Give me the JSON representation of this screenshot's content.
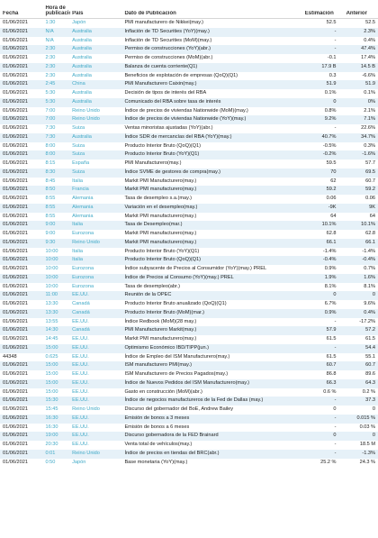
{
  "columns": {
    "date": "Fecha",
    "time": "Hora de publicación",
    "country": "País",
    "event": "Dato de Publicación",
    "estimate": "Estimación",
    "previous": "Anterior"
  },
  "rows": [
    {
      "date": "01/06/2021",
      "time": "1:30",
      "country": "Japón",
      "event": "PMI manufacturero de Nikkei(may.)",
      "estimate": "52.5",
      "previous": "52.5"
    },
    {
      "date": "01/06/2021",
      "time": "N/A",
      "country": "Australia",
      "event": "Inflación de TD Securities (YoY)(may.)",
      "estimate": "-",
      "previous": "2.3%"
    },
    {
      "date": "01/06/2021",
      "time": "N/A",
      "country": "Australia",
      "event": "Inflación de TD Securities (MoM)(may.)",
      "estimate": "-",
      "previous": "0.4%"
    },
    {
      "date": "01/06/2021",
      "time": "2:30",
      "country": "Australia",
      "event": "Permiso de construcciones (YoY)(abr.)",
      "estimate": "-",
      "previous": "47.4%"
    },
    {
      "date": "01/06/2021",
      "time": "2:30",
      "country": "Australia",
      "event": "Permiso de construcciones (MoM)(abr.)",
      "estimate": "-0.1",
      "previous": "17.4%"
    },
    {
      "date": "01/06/2021",
      "time": "2:30",
      "country": "Australia",
      "event": "Balanza de cuenta corriente(Q1)",
      "estimate": "17.9 B",
      "previous": "14.5 B"
    },
    {
      "date": "01/06/2021",
      "time": "2:30",
      "country": "Australia",
      "event": "Beneficios de explotación de empresas (QoQ)(Q1)",
      "estimate": "0.3",
      "previous": "-6.6%"
    },
    {
      "date": "01/06/2021",
      "time": "2:45",
      "country": "China",
      "event": "PMI Manufacturero Caixin(may.)",
      "estimate": "51.9",
      "previous": "51.9"
    },
    {
      "date": "01/06/2021",
      "time": "5:30",
      "country": "Australia",
      "event": "Decisión de tipos de interés del RBA",
      "estimate": "0.1%",
      "previous": "0.1%"
    },
    {
      "date": "01/06/2021",
      "time": "5:30",
      "country": "Australia",
      "event": "Comunicado del RBA sobre tasa de interés",
      "estimate": "0",
      "previous": "0%"
    },
    {
      "date": "01/06/2021",
      "time": "7:00",
      "country": "Reino Unido",
      "event": "Índice de precios de viviendas Nationwide (MoM)(may.)",
      "estimate": "0.8%",
      "previous": "2.1%"
    },
    {
      "date": "01/06/2021",
      "time": "7:00",
      "country": "Reino Unido",
      "event": "Índice de precios de viviendas Nationwide (YoY)(may.)",
      "estimate": "9.2%",
      "previous": "7.1%"
    },
    {
      "date": "01/06/2021",
      "time": "7:30",
      "country": "Suiza",
      "event": "Ventas minoristas ajustadas (YoY)(abr.)",
      "estimate": "-",
      "previous": "22.6%"
    },
    {
      "date": "01/06/2021",
      "time": "7:30",
      "country": "Australia",
      "event": "Índice SDR de mercancías del RBA (YoY)(may.)",
      "estimate": "40.7%",
      "previous": "34.7%"
    },
    {
      "date": "01/06/2021",
      "time": "8:00",
      "country": "Suiza",
      "event": "Producto Interior Bruto (QoQ)(Q1)",
      "estimate": "-0.5%",
      "previous": "0.3%"
    },
    {
      "date": "01/06/2021",
      "time": "8:00",
      "country": "Suiza",
      "event": "Producto Interior Bruto (YoY)(Q1)",
      "estimate": "-0.2%",
      "previous": "-1.6%"
    },
    {
      "date": "01/06/2021",
      "time": "8:15",
      "country": "España",
      "event": "PMI Manufacturero(may.)",
      "estimate": "59.5",
      "previous": "57.7"
    },
    {
      "date": "01/06/2021",
      "time": "8:30",
      "country": "Suiza",
      "event": "Índice SVME de gestores de compra(may.)",
      "estimate": "70",
      "previous": "69.5"
    },
    {
      "date": "01/06/2021",
      "time": "8:45",
      "country": "Italia",
      "event": "Markit PMI Manufacturero(may.)",
      "estimate": "62",
      "previous": "60.7"
    },
    {
      "date": "01/06/2021",
      "time": "8:50",
      "country": "Francia",
      "event": "Markit PMI manufacturero(may.)",
      "estimate": "59.2",
      "previous": "59.2"
    },
    {
      "date": "01/06/2021",
      "time": "8:55",
      "country": "Alemania",
      "event": "Tasa de desempleo s.a.(may.)",
      "estimate": "0.06",
      "previous": "0.06"
    },
    {
      "date": "01/06/2021",
      "time": "8:55",
      "country": "Alemania",
      "event": "Variación en el desempleo(may.)",
      "estimate": "-9K",
      "previous": "9K"
    },
    {
      "date": "01/06/2021",
      "time": "8:55",
      "country": "Alemania",
      "event": "Markit PMI manufacturero(may.)",
      "estimate": "64",
      "previous": "64"
    },
    {
      "date": "01/06/2021",
      "time": "9:00",
      "country": "Italia",
      "event": "Tasa de Desempleo(mar.)",
      "estimate": "10.1%",
      "previous": "10.1%"
    },
    {
      "date": "01/06/2021",
      "time": "9:00",
      "country": "Eurozona",
      "event": "Markit PMI manufacturero(may.)",
      "estimate": "62.8",
      "previous": "62.8"
    },
    {
      "date": "01/06/2021",
      "time": "9:30",
      "country": "Reino Unido",
      "event": "Markit PMI manufacturero(may.)",
      "estimate": "66.1",
      "previous": "66.1"
    },
    {
      "date": "01/06/2021",
      "time": "10:00",
      "country": "Italia",
      "event": "Producto Interior Bruto (YoY)(Q1)",
      "estimate": "-1.4%",
      "previous": "-1.4%"
    },
    {
      "date": "01/06/2021",
      "time": "10:00",
      "country": "Italia",
      "event": "Producto Interior Bruto (QoQ)(Q1)",
      "estimate": "-0.4%",
      "previous": "-0.4%"
    },
    {
      "date": "01/06/2021",
      "time": "10:00",
      "country": "Eurozona",
      "event": "Índice subyacente de Precios al Consumidor (YoY)(may.) PREL",
      "estimate": "0.9%",
      "previous": "0.7%"
    },
    {
      "date": "01/06/2021",
      "time": "10:00",
      "country": "Eurozona",
      "event": "Índice de Precios al Consumo (YoY)(may.) PREL",
      "estimate": "1.9%",
      "previous": "1.6%"
    },
    {
      "date": "01/06/2021",
      "time": "10:00",
      "country": "Eurozona",
      "event": "Tasa de desempleo(abr.)",
      "estimate": "8.1%",
      "previous": "8.1%"
    },
    {
      "date": "01/06/2021",
      "time": "11:00",
      "country": "EE.UU.",
      "event": "Reunión de la OPEC",
      "estimate": "0",
      "previous": "0"
    },
    {
      "date": "01/06/2021",
      "time": "13:30",
      "country": "Canadá",
      "event": "Producto Interior Bruto anualizado (QoQ)(Q1)",
      "estimate": "6.7%",
      "previous": "9.6%"
    },
    {
      "date": "01/06/2021",
      "time": "13:30",
      "country": "Canadá",
      "event": "Producto Interior Bruto (MoM)(mar.)",
      "estimate": "0.9%",
      "previous": "0.4%"
    },
    {
      "date": "01/06/2021",
      "time": "13:55",
      "country": "EE.UU.",
      "event": "Índice Redbook (MoM)(28 may.)",
      "estimate": "-",
      "previous": "-17.2%"
    },
    {
      "date": "01/06/2021",
      "time": "14:30",
      "country": "Canadá",
      "event": "PMI Manufacturero Markit(may.)",
      "estimate": "57.9",
      "previous": "57.2"
    },
    {
      "date": "01/06/2021",
      "time": "14:45",
      "country": "EE.UU.",
      "event": "Markit PMI manufacturero(may.)",
      "estimate": "61.5",
      "previous": "61.5"
    },
    {
      "date": "01/06/2021",
      "time": "15:00",
      "country": "EE.UU.",
      "event": "Optimismo Económico IBD/TIPP(jun.)",
      "estimate": "-",
      "previous": "54.4"
    },
    {
      "date": "44348",
      "time": "0.625",
      "country": "EE.UU.",
      "event": "Índice de Empleo del ISM Manufacturero(may.)",
      "estimate": "61.5",
      "previous": "55.1"
    },
    {
      "date": "01/06/2021",
      "time": "15:00",
      "country": "EE.UU.",
      "event": "ISM manufacturero PMI(may.)",
      "estimate": "60.7",
      "previous": "60.7"
    },
    {
      "date": "01/06/2021",
      "time": "15:00",
      "country": "EE.UU.",
      "event": "ISM Manufacturero de Precios Pagados(may.)",
      "estimate": "86.8",
      "previous": "89.6"
    },
    {
      "date": "01/06/2021",
      "time": "15:00",
      "country": "EE.UU.",
      "event": "Índice de Nuevos Pedidos del ISM Manufacturero(may.)",
      "estimate": "66.3",
      "previous": "64.3"
    },
    {
      "date": "01/06/2021",
      "time": "15:00",
      "country": "EE.UU.",
      "event": "Gasto en construcción (MoM)(abr.)",
      "estimate": "0.6 %",
      "previous": "0.2 %"
    },
    {
      "date": "01/06/2021",
      "time": "15:30",
      "country": "EE.UU.",
      "event": "Índice de negocios manufactureros de la Fed de Dallas (may.)",
      "estimate": "-",
      "previous": "37.3"
    },
    {
      "date": "01/06/2021",
      "time": "15:45",
      "country": "Reino Unido",
      "event": "Discurso del gobernador del BoE, Andrew Bailey",
      "estimate": "0",
      "previous": "0"
    },
    {
      "date": "01/06/2021",
      "time": "16:30",
      "country": "EE.UU.",
      "event": "Emisión de bonos a 3 meses",
      "estimate": "-",
      "previous": "0.015 %"
    },
    {
      "date": "01/06/2021",
      "time": "16:30",
      "country": "EE.UU.",
      "event": "Emisión de bonos a 6 meses",
      "estimate": "-",
      "previous": "0.03 %"
    },
    {
      "date": "01/06/2021",
      "time": "19:00",
      "country": "EE.UU.",
      "event": "Discurso gobernadora de la FED Brainard",
      "estimate": "0",
      "previous": "0"
    },
    {
      "date": "01/06/2021",
      "time": "20:30",
      "country": "EE.UU.",
      "event": "Venta total de vehículos(may.)",
      "estimate": "-",
      "previous": "18.5 M"
    },
    {
      "date": "01/06/2021",
      "time": "0:01",
      "country": "Reino Unido",
      "event": "Índice de precios en tiendas del BRC(abr.)",
      "estimate": "-",
      "previous": "-1.3%"
    },
    {
      "date": "01/06/2021",
      "time": "0:50",
      "country": "Japón",
      "event": "Base monetaria (YoY)(may.)",
      "estimate": "25.2 %",
      "previous": "24.3 %"
    }
  ]
}
